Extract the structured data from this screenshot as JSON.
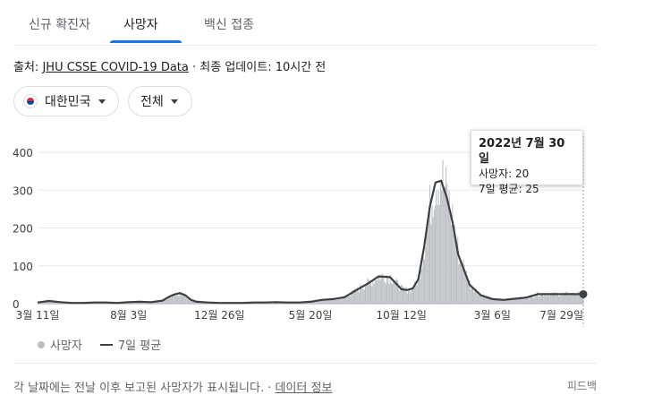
{
  "tabs": [
    {
      "label": "신규 확진자"
    },
    {
      "label": "사망자"
    },
    {
      "label": "백신 접종"
    }
  ],
  "source": {
    "prefix": "출처:",
    "link": "JHU CSSE COVID-19 Data",
    "sep": "·",
    "updated": "최종 업데이트: 10시간 전"
  },
  "filters": {
    "country": "대한민국",
    "scope": "전체"
  },
  "tooltip": {
    "date": "2022년 7월 30일",
    "deaths": "사망자: 20",
    "avg": "7일 평균: 25"
  },
  "legend": {
    "deaths": "사망자",
    "avg": "7일 평균"
  },
  "footer": {
    "text": "각 날짜에는 전날 이후 보고된 사망자가 표시됩니다. ·",
    "link": "데이터 정보",
    "feedback": "피드백"
  },
  "colors": {
    "accent": "#1a73e8",
    "bars": "#bdc1c6",
    "line": "#3c4043"
  },
  "chart_data": {
    "type": "area",
    "xtick_labels": [
      "3월 11일",
      "8월 3일",
      "12월 26일",
      "5월 20일",
      "10월 12일",
      "3월 6일",
      "7월 29일"
    ],
    "yticks": [
      0,
      100,
      200,
      300,
      400
    ],
    "ylim": [
      0,
      400
    ],
    "series": [
      {
        "name": "7일 평균",
        "x": [
          0,
          2,
          4,
          6,
          8,
          10,
          12,
          14,
          16,
          18,
          20,
          22,
          23,
          24,
          25,
          26,
          27,
          28,
          30,
          32,
          34,
          36,
          38,
          40,
          42,
          44,
          46,
          48,
          50,
          52,
          54,
          56,
          58,
          60,
          62,
          64,
          65,
          66,
          67,
          68,
          69,
          70,
          71,
          72,
          73,
          74,
          76,
          78,
          80,
          82,
          84,
          86,
          88,
          90,
          92,
          94,
          96
        ],
        "values": [
          3,
          7,
          4,
          2,
          2,
          3,
          3,
          2,
          4,
          5,
          4,
          8,
          17,
          24,
          28,
          22,
          10,
          5,
          3,
          2,
          2,
          2,
          3,
          3,
          4,
          3,
          3,
          5,
          10,
          12,
          17,
          35,
          52,
          72,
          70,
          38,
          36,
          40,
          65,
          150,
          255,
          320,
          325,
          280,
          215,
          130,
          50,
          22,
          12,
          10,
          13,
          16,
          25,
          25,
          25,
          25,
          25
        ]
      }
    ],
    "x_range": [
      0,
      96
    ],
    "bars_note": "daily bars follow the 7-day average with noise"
  }
}
